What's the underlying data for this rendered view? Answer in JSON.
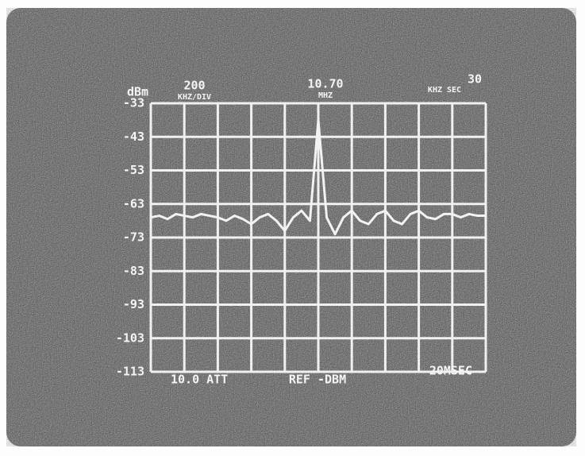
{
  "chart_data": {
    "type": "line",
    "y_label": "dBm",
    "annotations": [
      "200",
      "KHZ/DIV",
      "10.70",
      "MHZ",
      "30",
      "KHZ SEC",
      "10.0 ATT",
      "REF -DBM",
      "20MSEC"
    ],
    "x": [
      0,
      0.25,
      0.5,
      0.75,
      1,
      1.25,
      1.5,
      1.75,
      2,
      2.25,
      2.5,
      2.75,
      3,
      3.25,
      3.5,
      3.75,
      4,
      4.25,
      4.5,
      4.75,
      5,
      5.25,
      5.5,
      5.75,
      6,
      6.25,
      6.5,
      6.75,
      7,
      7.25,
      7.5,
      7.75,
      8,
      8.25,
      8.5,
      8.75,
      9,
      9.25,
      9.5,
      9.75,
      10
    ],
    "series": [
      {
        "color": "#f2f2f2",
        "values": [
          -67,
          -66.5,
          -67.5,
          -66,
          -66.5,
          -67,
          -66,
          -66.5,
          -67,
          -68,
          -66.5,
          -67.5,
          -69,
          -67,
          -66,
          -68,
          -71,
          -67,
          -65,
          -68,
          -38,
          -67,
          -72,
          -67,
          -65,
          -68,
          -69,
          -66,
          -65,
          -68,
          -69,
          -66,
          -65,
          -67,
          -67.5,
          -66,
          -66,
          -67,
          -66,
          -66.5,
          -66.5
        ]
      }
    ],
    "xlim": [
      0,
      10
    ],
    "xticks": [
      0,
      1,
      2,
      3,
      4,
      5,
      6,
      7,
      8,
      9,
      10
    ],
    "ylim": [
      -113,
      -33
    ],
    "yticks": [
      -33,
      -43,
      -53,
      -63,
      -73,
      -83,
      -93,
      -103,
      -113
    ],
    "grid": true
  }
}
